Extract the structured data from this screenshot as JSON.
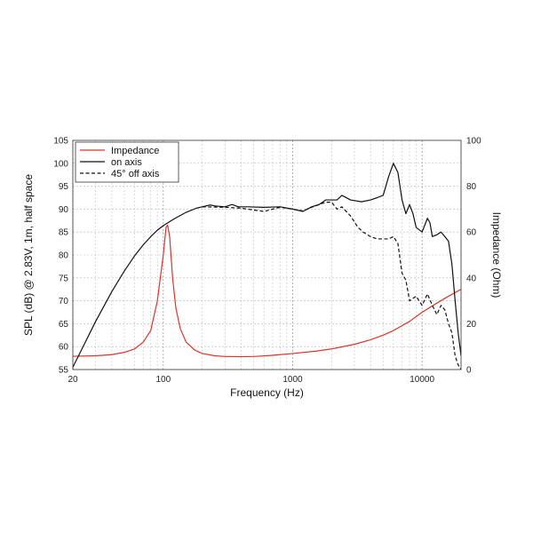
{
  "chart_data": {
    "type": "line",
    "xlabel": "Frequency (Hz)",
    "ylabel_left": "SPL (dB) @ 2.83V, 1m, half space",
    "ylabel_right": "Impedance (Ohm)",
    "x_scale": "log",
    "xlim": [
      20,
      20000
    ],
    "ylim_left": [
      55,
      105
    ],
    "ylim_right": [
      0,
      100
    ],
    "x_ticks": [
      {
        "value": 20,
        "label": "20"
      },
      {
        "value": 100,
        "label": "100"
      },
      {
        "value": 1000,
        "label": "1000"
      },
      {
        "value": 10000,
        "label": "10000"
      }
    ],
    "y_ticks_left": [
      55,
      60,
      65,
      70,
      75,
      80,
      85,
      90,
      95,
      100,
      105
    ],
    "y_ticks_right": [
      0,
      20,
      40,
      60,
      80,
      100
    ],
    "grid": true,
    "legend_position": "top-left",
    "series": [
      {
        "name": "Impedance",
        "axis": "right",
        "color": "#d9352b",
        "dash": "solid",
        "points": [
          [
            20,
            5.8
          ],
          [
            30,
            6
          ],
          [
            40,
            6.5
          ],
          [
            50,
            7.5
          ],
          [
            60,
            9
          ],
          [
            70,
            12
          ],
          [
            80,
            17
          ],
          [
            90,
            30
          ],
          [
            100,
            50
          ],
          [
            105,
            62
          ],
          [
            108,
            63
          ],
          [
            112,
            58
          ],
          [
            118,
            40
          ],
          [
            125,
            27
          ],
          [
            135,
            18
          ],
          [
            150,
            12
          ],
          [
            175,
            8.5
          ],
          [
            200,
            7
          ],
          [
            250,
            6
          ],
          [
            300,
            5.7
          ],
          [
            400,
            5.6
          ],
          [
            500,
            5.7
          ],
          [
            700,
            6.2
          ],
          [
            1000,
            7
          ],
          [
            1500,
            8
          ],
          [
            2000,
            9
          ],
          [
            3000,
            11
          ],
          [
            4000,
            13
          ],
          [
            5000,
            15
          ],
          [
            6000,
            17
          ],
          [
            8000,
            21
          ],
          [
            10000,
            25
          ],
          [
            13000,
            29
          ],
          [
            16000,
            32
          ],
          [
            20000,
            35
          ]
        ]
      },
      {
        "name": "on axis",
        "axis": "left",
        "color": "#111111",
        "dash": "solid",
        "points": [
          [
            20,
            55.5
          ],
          [
            25,
            61
          ],
          [
            30,
            65.5
          ],
          [
            40,
            72
          ],
          [
            50,
            76.5
          ],
          [
            60,
            79.8
          ],
          [
            70,
            82.2
          ],
          [
            80,
            84
          ],
          [
            90,
            85.4
          ],
          [
            100,
            86.4
          ],
          [
            120,
            87.8
          ],
          [
            150,
            89.3
          ],
          [
            180,
            90.2
          ],
          [
            200,
            90.5
          ],
          [
            230,
            90.9
          ],
          [
            250,
            90.7
          ],
          [
            300,
            90.5
          ],
          [
            340,
            91
          ],
          [
            380,
            90.5
          ],
          [
            450,
            90.5
          ],
          [
            600,
            90.4
          ],
          [
            800,
            90.5
          ],
          [
            1000,
            90
          ],
          [
            1200,
            89.5
          ],
          [
            1400,
            90.5
          ],
          [
            1600,
            91
          ],
          [
            1800,
            92
          ],
          [
            2200,
            92
          ],
          [
            2400,
            93
          ],
          [
            2800,
            92
          ],
          [
            3400,
            91.6
          ],
          [
            4000,
            92
          ],
          [
            4500,
            92.5
          ],
          [
            5000,
            93
          ],
          [
            5500,
            97
          ],
          [
            6000,
            100
          ],
          [
            6500,
            98
          ],
          [
            7000,
            92
          ],
          [
            7500,
            89
          ],
          [
            8000,
            91
          ],
          [
            8500,
            89
          ],
          [
            9000,
            86
          ],
          [
            10000,
            85
          ],
          [
            11000,
            88
          ],
          [
            11500,
            87
          ],
          [
            12000,
            84
          ],
          [
            13000,
            84.4
          ],
          [
            14000,
            85
          ],
          [
            15000,
            84
          ],
          [
            16000,
            83
          ],
          [
            17000,
            78
          ],
          [
            18000,
            70
          ],
          [
            19000,
            63
          ],
          [
            20000,
            58
          ]
        ]
      },
      {
        "name": "45° off axis",
        "axis": "left",
        "color": "#111111",
        "dash": "dashed",
        "points": [
          [
            200,
            90.5
          ],
          [
            300,
            90.4
          ],
          [
            400,
            90.2
          ],
          [
            500,
            89.8
          ],
          [
            600,
            89.5
          ],
          [
            700,
            90
          ],
          [
            800,
            90.4
          ],
          [
            1000,
            90
          ],
          [
            1200,
            89.6
          ],
          [
            1400,
            90.4
          ],
          [
            1600,
            91
          ],
          [
            1800,
            91.5
          ],
          [
            2000,
            91.5
          ],
          [
            2200,
            90
          ],
          [
            2400,
            90.5
          ],
          [
            2800,
            88.5
          ],
          [
            3200,
            86
          ],
          [
            3500,
            85
          ],
          [
            4000,
            84
          ],
          [
            4500,
            83.5
          ],
          [
            5000,
            83.5
          ],
          [
            5500,
            83.5
          ],
          [
            6000,
            84
          ],
          [
            6500,
            82.5
          ],
          [
            7000,
            76
          ],
          [
            7500,
            74.5
          ],
          [
            8000,
            70
          ],
          [
            9000,
            71
          ],
          [
            10000,
            69
          ],
          [
            11000,
            71.5
          ],
          [
            12000,
            69
          ],
          [
            13000,
            67
          ],
          [
            14000,
            69
          ],
          [
            15000,
            68
          ],
          [
            16000,
            65
          ],
          [
            17000,
            63
          ],
          [
            18000,
            58
          ],
          [
            19000,
            56
          ],
          [
            20000,
            55
          ]
        ]
      }
    ]
  }
}
